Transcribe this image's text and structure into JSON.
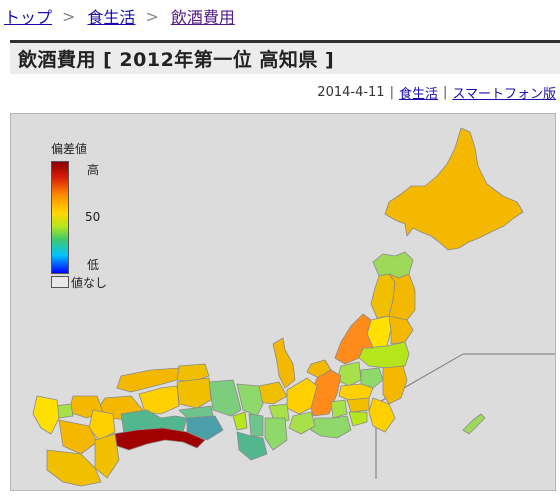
{
  "breadcrumb": {
    "items": [
      {
        "label": "トップ"
      },
      {
        "label": "食生活"
      },
      {
        "label": "飲酒費用"
      }
    ],
    "separator": ">"
  },
  "page": {
    "title": "飲酒費用 [ 2012年第一位 高知県 ]",
    "date": "2014-4-11",
    "category_link": "食生活",
    "smartphone_link": "スマートフォン版"
  },
  "legend": {
    "title": "偏差値",
    "high": "高",
    "mid": "50",
    "low": "低",
    "none": "値なし"
  },
  "colors": {
    "link": "#1a0dab",
    "visited": "#551a8b",
    "sea": "#dcdcdc",
    "top_prefecture": "#a00000"
  }
}
